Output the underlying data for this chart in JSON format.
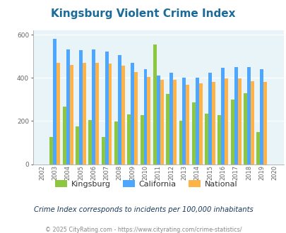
{
  "title": "Kingsburg Violent Crime Index",
  "subtitle": "Crime Index corresponds to incidents per 100,000 inhabitants",
  "footer": "© 2025 CityRating.com - https://www.cityrating.com/crime-statistics/",
  "years": [
    2002,
    2003,
    2004,
    2005,
    2006,
    2007,
    2008,
    2009,
    2010,
    2011,
    2012,
    2013,
    2014,
    2015,
    2016,
    2017,
    2018,
    2019,
    2020
  ],
  "kingsburg": [
    0,
    125,
    268,
    175,
    205,
    125,
    198,
    230,
    228,
    555,
    325,
    200,
    288,
    235,
    228,
    298,
    330,
    150,
    0
  ],
  "california": [
    0,
    582,
    530,
    527,
    533,
    523,
    505,
    468,
    440,
    410,
    425,
    400,
    400,
    425,
    445,
    450,
    450,
    440,
    0
  ],
  "national": [
    0,
    470,
    458,
    468,
    470,
    466,
    455,
    428,
    405,
    390,
    390,
    368,
    376,
    382,
    398,
    398,
    385,
    380,
    0
  ],
  "bar_colors": {
    "kingsburg": "#8dc63f",
    "california": "#4da6ff",
    "national": "#ffb347"
  },
  "bg_color": "#e8f4f8",
  "title_color": "#1a6b9a",
  "text_color": "#666666",
  "subtitle_color": "#1a3a5c",
  "footer_color": "#888888",
  "footer_link_color": "#4da6ff",
  "ylim": [
    0,
    620
  ],
  "yticks": [
    0,
    200,
    400,
    600
  ],
  "bar_width": 0.27
}
